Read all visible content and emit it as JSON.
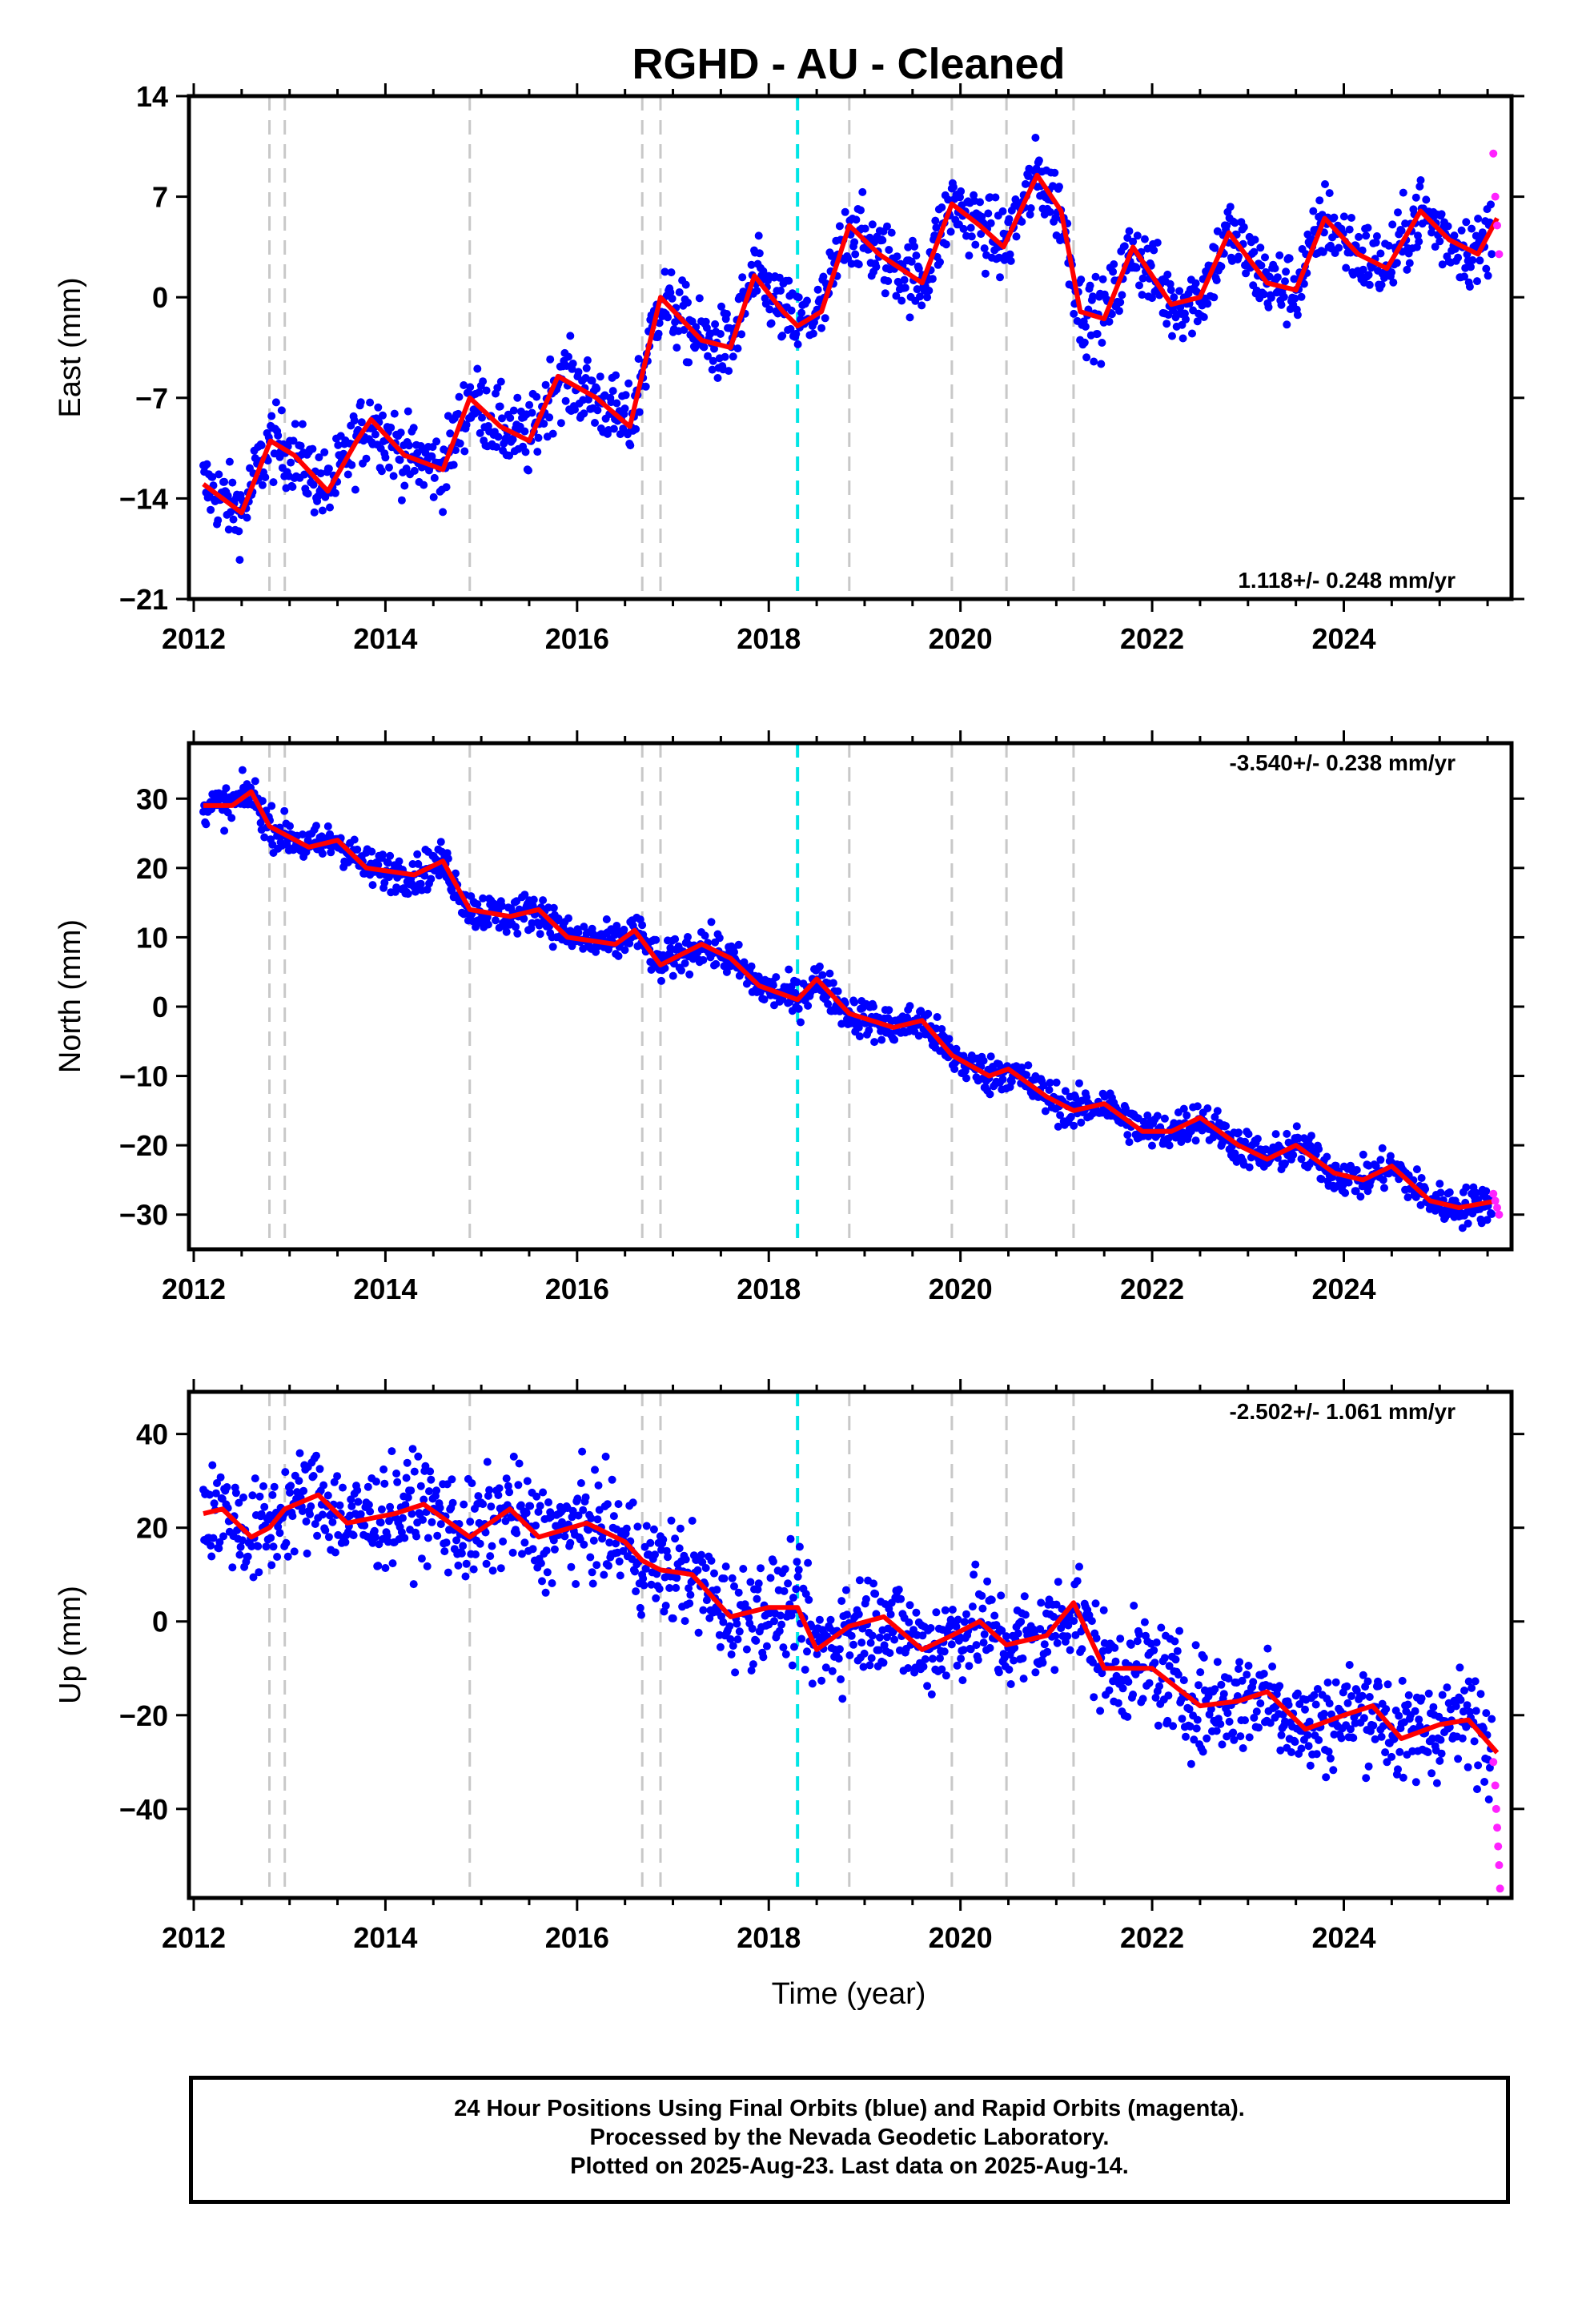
{
  "title": "RGHD  - AU - Cleaned",
  "xlabel": "Time (year)",
  "x_ticks": [
    "2012",
    "2014",
    "2016",
    "2018",
    "2020",
    "2022",
    "2024"
  ],
  "colors": {
    "final_points": "#0000ff",
    "rapid_points": "#ff22ff",
    "model_line": "#ff0000",
    "equipment_change": "#c8c8c8",
    "earthquake": "#00e5e5"
  },
  "events": {
    "equipment_changes": [
      2012.79,
      2012.95,
      2014.88,
      2016.68,
      2016.87,
      2018.84,
      2019.91,
      2020.48,
      2021.18
    ],
    "earthquake": [
      2018.3
    ]
  },
  "chart_data": [
    {
      "type": "scatter",
      "component": "East",
      "ylabel": "East (mm)",
      "rate_text": "1.118+/- 0.248 mm/yr",
      "xlim": [
        2011.95,
        2025.75
      ],
      "ylim": [
        -21,
        14
      ],
      "yticks": [
        14,
        7,
        0,
        -7,
        -14,
        -21
      ],
      "ytick_labels": [
        "14",
        "7",
        "0",
        "−7",
        "−14",
        "−21"
      ],
      "series": [
        {
          "type": "line",
          "x": [
            2012.1,
            2012.5,
            2012.8,
            2013.05,
            2013.4,
            2013.7,
            2013.85,
            2014.2,
            2014.6,
            2014.88,
            2015.2,
            2015.5,
            2015.8,
            2016.2,
            2016.55,
            2016.87,
            2017.3,
            2017.6,
            2017.85,
            2018.15,
            2018.3,
            2018.55,
            2018.84,
            2019.15,
            2019.6,
            2019.91,
            2020.2,
            2020.45,
            2020.8,
            2021.05,
            2021.25,
            2021.5,
            2021.8,
            2022.2,
            2022.5,
            2022.8,
            2023.2,
            2023.5,
            2023.8,
            2024.15,
            2024.45,
            2024.8,
            2025.1,
            2025.4,
            2025.6
          ],
          "y": [
            -13,
            -15,
            -10,
            -11,
            -13.5,
            -10,
            -8.5,
            -11,
            -12,
            -7,
            -9,
            -10,
            -5.5,
            -7,
            -9,
            0,
            -3,
            -3.5,
            1.5,
            -1,
            -2,
            -1,
            5,
            3,
            1,
            6.5,
            5,
            3.5,
            8.5,
            6,
            -1,
            -1.5,
            3.5,
            -0.5,
            0,
            4.5,
            1,
            0.5,
            5.5,
            3,
            2,
            6,
            4,
            3,
            5.5
          ]
        },
        {
          "type": "rapid",
          "x": [
            2025.56,
            2025.58,
            2025.6,
            2025.62
          ],
          "y": [
            10,
            7,
            5,
            3
          ]
        }
      ]
    },
    {
      "type": "scatter",
      "component": "North",
      "ylabel": "North (mm)",
      "rate_text": "-3.540+/- 0.238 mm/yr",
      "xlim": [
        2011.95,
        2025.75
      ],
      "ylim": [
        -35,
        38
      ],
      "yticks": [
        30,
        20,
        10,
        0,
        -10,
        -20,
        -30
      ],
      "ytick_labels": [
        "30",
        "20",
        "10",
        "0",
        "−10",
        "−20",
        "−30"
      ],
      "series": [
        {
          "type": "line",
          "x": [
            2012.1,
            2012.4,
            2012.6,
            2012.79,
            2013.2,
            2013.5,
            2013.8,
            2014.3,
            2014.6,
            2014.88,
            2015.3,
            2015.6,
            2015.9,
            2016.4,
            2016.6,
            2016.87,
            2017.3,
            2017.6,
            2017.9,
            2018.3,
            2018.5,
            2018.84,
            2019.3,
            2019.6,
            2019.91,
            2020.3,
            2020.5,
            2020.9,
            2021.18,
            2021.5,
            2021.9,
            2022.2,
            2022.5,
            2022.9,
            2023.2,
            2023.5,
            2023.9,
            2024.2,
            2024.5,
            2024.9,
            2025.2,
            2025.6
          ],
          "y": [
            29,
            29,
            31,
            26,
            23,
            24,
            20,
            19,
            21,
            14,
            13,
            14,
            10,
            9,
            11,
            6,
            9,
            7,
            3,
            1,
            4,
            -1,
            -3,
            -2,
            -7,
            -10,
            -9,
            -13,
            -15,
            -14,
            -18,
            -18,
            -16,
            -20,
            -22,
            -20,
            -24,
            -25,
            -23,
            -28,
            -29,
            -28
          ]
        },
        {
          "type": "rapid",
          "x": [
            2025.56,
            2025.58,
            2025.6,
            2025.62
          ],
          "y": [
            -27,
            -28,
            -29,
            -30
          ]
        }
      ]
    },
    {
      "type": "scatter",
      "component": "Up",
      "ylabel": "Up (mm)",
      "rate_text": "-2.502+/- 1.061 mm/yr",
      "xlim": [
        2011.95,
        2025.75
      ],
      "ylim": [
        -59,
        49
      ],
      "yticks": [
        40,
        20,
        0,
        -20,
        -40
      ],
      "ytick_labels": [
        "40",
        "20",
        "0",
        "−20",
        "−40"
      ],
      "series": [
        {
          "type": "line",
          "x": [
            2012.1,
            2012.3,
            2012.6,
            2012.79,
            2012.95,
            2013.3,
            2013.6,
            2014.1,
            2014.4,
            2014.88,
            2015.3,
            2015.6,
            2016.1,
            2016.5,
            2016.68,
            2016.87,
            2017.2,
            2017.6,
            2018.0,
            2018.3,
            2018.5,
            2018.84,
            2019.2,
            2019.6,
            2019.91,
            2020.2,
            2020.48,
            2020.9,
            2021.18,
            2021.5,
            2022.0,
            2022.5,
            2022.9,
            2023.2,
            2023.6,
            2024.0,
            2024.3,
            2024.6,
            2025.0,
            2025.3,
            2025.6
          ],
          "y": [
            23,
            24,
            18,
            20,
            24,
            27,
            21,
            23,
            25,
            18,
            24,
            18,
            21,
            17,
            13,
            11,
            10,
            1,
            3,
            3,
            -6,
            -1,
            1,
            -6,
            -3,
            0,
            -5,
            -3,
            4,
            -10,
            -10,
            -18,
            -17,
            -15,
            -23,
            -20,
            -18,
            -25,
            -22,
            -21,
            -28
          ]
        },
        {
          "type": "rapid",
          "x": [
            2025.56,
            2025.58,
            2025.59,
            2025.6,
            2025.61,
            2025.62,
            2025.63
          ],
          "y": [
            -30,
            -35,
            -40,
            -44,
            -48,
            -52,
            -57
          ]
        }
      ]
    }
  ],
  "footer": {
    "line1": "24 Hour Positions Using Final Orbits (blue) and Rapid Orbits (magenta).",
    "line2": "Processed by the Nevada Geodetic Laboratory.",
    "line3": "Plotted on 2025-Aug-23. Last data on 2025-Aug-14."
  }
}
